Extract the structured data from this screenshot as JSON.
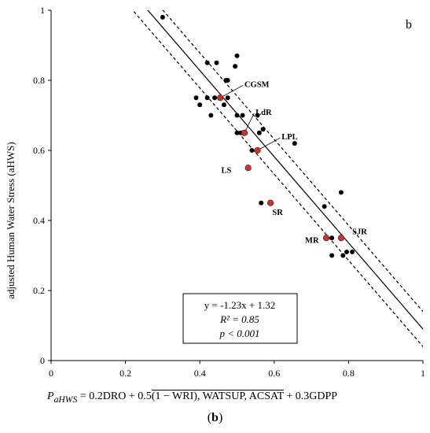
{
  "chart_data": {
    "type": "scatter",
    "panel_label": "b",
    "ylabel": "adjusted Human Water Stress (aHWS)",
    "xlim": [
      0,
      1
    ],
    "ylim": [
      0,
      1
    ],
    "x_ticks": [
      "0",
      "0.2",
      "0.4",
      "0.6",
      "0.8",
      "1"
    ],
    "y_ticks": [
      "0",
      "0.2",
      "0.4",
      "0.6",
      "0.8",
      "1"
    ],
    "grid": false,
    "series": [
      {
        "color": "#000000",
        "points": [
          [
            0.3,
            0.98
          ],
          [
            0.42,
            0.85
          ],
          [
            0.445,
            0.85
          ],
          [
            0.5,
            0.87
          ],
          [
            0.495,
            0.84
          ],
          [
            0.47,
            0.8
          ],
          [
            0.475,
            0.8
          ],
          [
            0.39,
            0.75
          ],
          [
            0.42,
            0.75
          ],
          [
            0.44,
            0.75
          ],
          [
            0.475,
            0.75
          ],
          [
            0.4,
            0.73
          ],
          [
            0.465,
            0.73
          ],
          [
            0.43,
            0.7
          ],
          [
            0.5,
            0.7
          ],
          [
            0.515,
            0.7
          ],
          [
            0.555,
            0.7
          ],
          [
            0.5,
            0.65
          ],
          [
            0.51,
            0.65
          ],
          [
            0.56,
            0.65
          ],
          [
            0.57,
            0.66
          ],
          [
            0.655,
            0.62
          ],
          [
            0.54,
            0.6
          ],
          [
            0.565,
            0.45
          ],
          [
            0.78,
            0.48
          ],
          [
            0.735,
            0.44
          ],
          [
            0.755,
            0.35
          ],
          [
            0.755,
            0.3
          ],
          [
            0.785,
            0.3
          ],
          [
            0.795,
            0.31
          ],
          [
            0.81,
            0.31
          ]
        ]
      },
      {
        "color": "#d0312d",
        "points": [
          [
            0.455,
            0.75
          ],
          [
            0.52,
            0.65
          ],
          [
            0.555,
            0.6
          ],
          [
            0.53,
            0.55
          ],
          [
            0.59,
            0.45
          ],
          [
            0.74,
            0.35
          ],
          [
            0.78,
            0.35
          ]
        ]
      }
    ],
    "point_labels": [
      {
        "text": "CGSM",
        "x": 0.455,
        "y": 0.75
      },
      {
        "text": "LdR",
        "x": 0.52,
        "y": 0.65
      },
      {
        "text": "LPL",
        "x": 0.555,
        "y": 0.6
      },
      {
        "text": "LS",
        "x": 0.53,
        "y": 0.55
      },
      {
        "text": "SR",
        "x": 0.59,
        "y": 0.45
      },
      {
        "text": "MR",
        "x": 0.74,
        "y": 0.35
      },
      {
        "text": "SJR",
        "x": 0.78,
        "y": 0.35
      }
    ],
    "regression": {
      "slope": -1.23,
      "intercept": 1.32,
      "band_offset": 0.05,
      "annotation_lines": [
        "y = -1.23x + 1.32",
        "R² = 0.85",
        "p < 0.001"
      ]
    }
  },
  "formula": {
    "lhs": "P",
    "lhs_sub": "aHWS",
    "part1": " = 0.2DRO + 0.5",
    "overlined": "(1 − WRI), WATSUP, ACSAT",
    "part2": " + 0.3GDPP"
  },
  "caption": {
    "open": "(",
    "label": "b",
    "close": ")"
  }
}
